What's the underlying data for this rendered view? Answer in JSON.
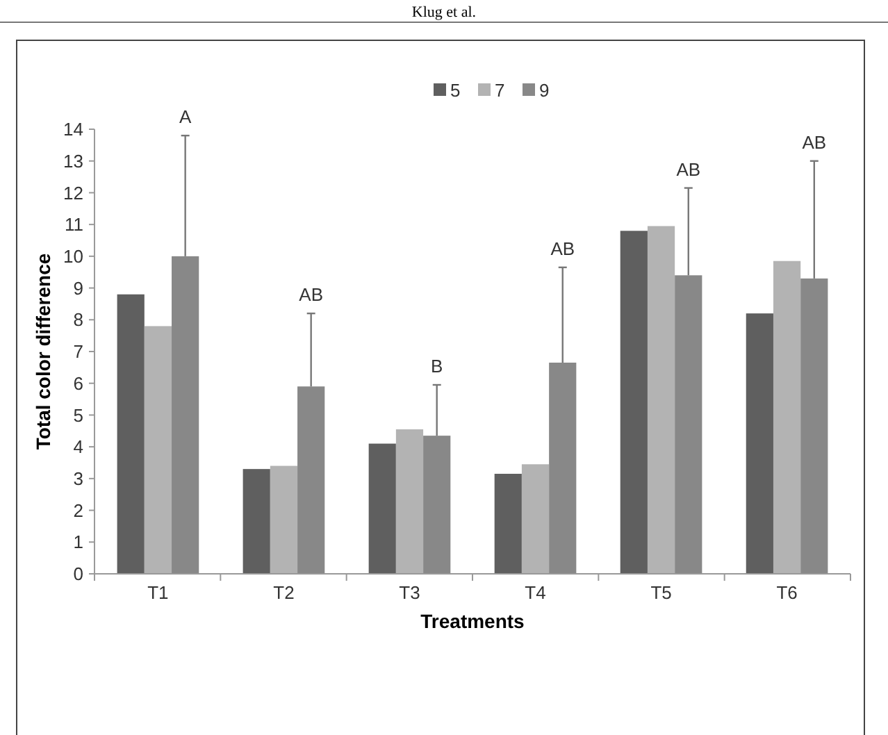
{
  "chart_data": {
    "type": "bar",
    "xlabel": "Treatments",
    "ylabel": "Total color difference",
    "categories": [
      "T1",
      "T2",
      "T3",
      "T4",
      "T5",
      "T6"
    ],
    "series": [
      {
        "name": "5",
        "color": "#5f5f5f",
        "values": [
          8.8,
          3.3,
          4.1,
          3.15,
          10.8,
          8.2
        ]
      },
      {
        "name": "7",
        "color": "#b3b3b3",
        "values": [
          7.8,
          3.4,
          4.55,
          3.45,
          10.95,
          9.85
        ]
      },
      {
        "name": "9",
        "color": "#888888",
        "values": [
          10.0,
          5.9,
          4.35,
          6.65,
          9.4,
          9.3
        ],
        "errors": [
          [
            10.0,
            13.8
          ],
          [
            5.9,
            8.2
          ],
          [
            4.35,
            5.95
          ],
          [
            6.65,
            9.65
          ],
          [
            9.4,
            12.15
          ],
          [
            9.3,
            13.0
          ]
        ]
      }
    ],
    "ylim": [
      0,
      14
    ],
    "yticks": [
      0,
      1,
      2,
      3,
      4,
      5,
      6,
      7,
      8,
      9,
      10,
      11,
      12,
      13,
      14
    ],
    "grid": false,
    "legend": "top",
    "annotations": [
      "Klug et al.",
      "A",
      "AB",
      "B",
      "AB",
      "AB",
      "AB"
    ]
  }
}
